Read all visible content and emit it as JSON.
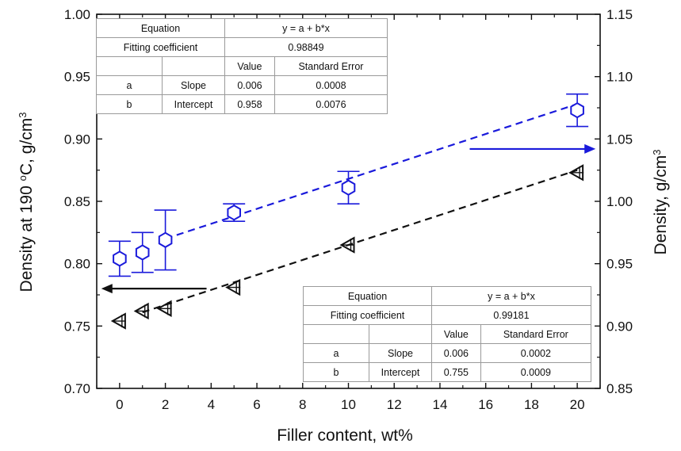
{
  "chart_data": {
    "type": "scatter",
    "xlabel": "Filler content, wt%",
    "ylabel_left": "Density at 190 °C, g/cm3",
    "ylabel_right": "Density, g/cm3",
    "xlim": [
      -1,
      21
    ],
    "ylim_left": [
      0.7,
      1.0
    ],
    "ylim_right": [
      0.85,
      1.15
    ],
    "xticks": [
      "0",
      "2",
      "4",
      "6",
      "8",
      "10",
      "12",
      "14",
      "16",
      "18",
      "20"
    ],
    "yticks_left": [
      "0.70",
      "0.75",
      "0.80",
      "0.85",
      "0.90",
      "0.95",
      "1.00"
    ],
    "yticks_right": [
      "0.85",
      "0.90",
      "0.95",
      "1.00",
      "1.05",
      "1.10",
      "1.15"
    ],
    "series": [
      {
        "axis": "right",
        "color": "#1a1adb",
        "marker": "hexagon",
        "x": [
          0,
          1,
          2,
          5,
          10,
          20
        ],
        "y": [
          0.954,
          0.959,
          0.969,
          0.991,
          1.011,
          1.073
        ],
        "err": [
          0.014,
          0.016,
          0.024,
          0.007,
          0.013,
          0.013
        ],
        "fit": {
          "intercept": 0.958,
          "slope": 0.006,
          "x_range": [
            2,
            20
          ]
        }
      },
      {
        "axis": "left",
        "color": "#111111",
        "marker": "left-triangle",
        "x": [
          0,
          1,
          2,
          5,
          10,
          20
        ],
        "y": [
          0.754,
          0.762,
          0.764,
          0.781,
          0.815,
          0.873
        ],
        "err": [
          0.004,
          0.004,
          0.004,
          0.004,
          0.004,
          0.004
        ],
        "fit": {
          "intercept": 0.755,
          "slope": 0.006,
          "x_range": [
            1,
            20
          ]
        }
      }
    ],
    "annotations": [
      {
        "type": "arrow",
        "direction": "right",
        "target_axis": "right",
        "color": "#1a1adb",
        "x_from": 15.3,
        "x_to": 20.8,
        "y_left": 0.892
      },
      {
        "type": "arrow",
        "direction": "left",
        "target_axis": "left",
        "color": "#111111",
        "x_from": 3.8,
        "x_to": -0.8,
        "y_left": 0.78
      }
    ]
  },
  "tables": {
    "top": {
      "equation_label": "Equation",
      "equation": "y = a + b*x",
      "coef_label": "Fitting coefficient",
      "coef": "0.98849",
      "value_header": "Value",
      "stderr_header": "Standard Error",
      "rows": [
        {
          "param": "a",
          "name": "Slope",
          "value": "0.006",
          "stderr": "0.0008"
        },
        {
          "param": "b",
          "name": "Intercept",
          "value": "0.958",
          "stderr": "0.0076"
        }
      ]
    },
    "bottom": {
      "equation_label": "Equation",
      "equation": "y = a + b*x",
      "coef_label": "Fitting coefficient",
      "coef": "0.99181",
      "value_header": "Value",
      "stderr_header": "Standard Error",
      "rows": [
        {
          "param": "a",
          "name": "Slope",
          "value": "0.006",
          "stderr": "0.0002"
        },
        {
          "param": "b",
          "name": "Intercept",
          "value": "0.755",
          "stderr": "0.0009"
        }
      ]
    }
  }
}
